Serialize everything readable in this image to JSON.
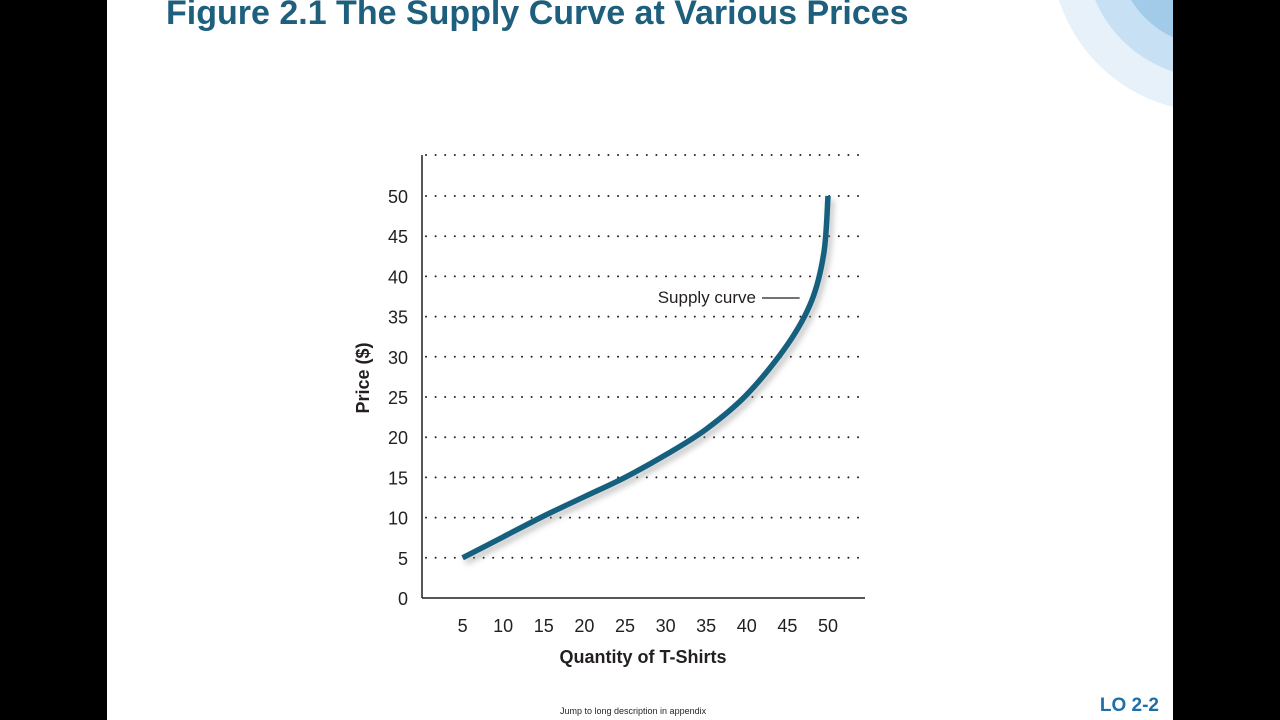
{
  "slide": {
    "title": "Figure 2.1 The Supply Curve at Various Prices",
    "footer_note": "Jump to long description in appendix",
    "lo_label": "LO 2-2"
  },
  "colors": {
    "title": "#1d5f7c",
    "curve": "#15607e",
    "lo_label": "#1d6fa8",
    "text": "#231f20",
    "decoration": [
      "#e6f1fa",
      "#c7e0f3",
      "#a2cbe9"
    ]
  },
  "chart_data": {
    "type": "line",
    "title": "",
    "xlabel": "Quantity of T-Shirts",
    "ylabel": "Price ($)",
    "xlim": [
      0,
      50
    ],
    "ylim": [
      0,
      50
    ],
    "xticks": [
      5,
      10,
      15,
      20,
      25,
      30,
      35,
      40,
      45,
      50
    ],
    "yticks": [
      0,
      5,
      10,
      15,
      20,
      25,
      30,
      35,
      40,
      45,
      50
    ],
    "grid": "horizontal dotted",
    "series": [
      {
        "name": "Supply curve",
        "points": [
          [
            5,
            5
          ],
          [
            10,
            7.6
          ],
          [
            15,
            10.2
          ],
          [
            20,
            12.6
          ],
          [
            25,
            15
          ],
          [
            30,
            17.8
          ],
          [
            35,
            21
          ],
          [
            40,
            25.3
          ],
          [
            45,
            31.5
          ],
          [
            48,
            37
          ],
          [
            49.5,
            43
          ],
          [
            50,
            50
          ]
        ]
      }
    ],
    "annotation": {
      "text": "Supply curve",
      "points_to": [
        47,
        37.5
      ]
    }
  }
}
